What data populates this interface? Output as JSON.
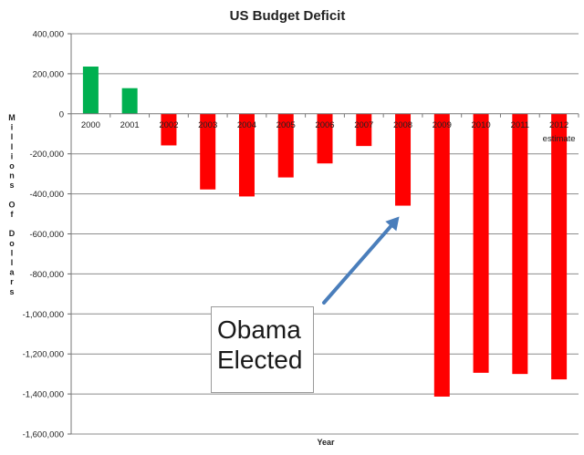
{
  "chart_data": {
    "type": "bar",
    "title": "US Budget Deficit",
    "xlabel": "Year",
    "ylabel": "Millions Of Dollars",
    "ylim": [
      -1600000,
      400000
    ],
    "yticks": [
      400000,
      200000,
      0,
      -200000,
      -400000,
      -600000,
      -800000,
      -1000000,
      -1200000,
      -1400000,
      -1600000
    ],
    "ytick_labels": [
      "400,000",
      "200,000",
      "0",
      "-200,000",
      "-400,000",
      "-600,000",
      "-800,000",
      "-1,000,000",
      "-1,200,000",
      "-1,400,000",
      "-1,600,000"
    ],
    "grid": true,
    "categories": [
      "2000",
      "2001",
      "2002",
      "2003",
      "2004",
      "2005",
      "2006",
      "2007",
      "2008",
      "2009",
      "2010",
      "2011",
      "2012"
    ],
    "values": [
      236000,
      128000,
      -158000,
      -378000,
      -413000,
      -318000,
      -248000,
      -161000,
      -459000,
      -1413000,
      -1294000,
      -1300000,
      -1327000
    ],
    "bar_colors": [
      "#00b050",
      "#00b050",
      "#ff0000",
      "#ff0000",
      "#ff0000",
      "#ff0000",
      "#ff0000",
      "#ff0000",
      "#ff0000",
      "#ff0000",
      "#ff0000",
      "#ff0000",
      "#ff0000"
    ],
    "category_note": "estimate",
    "annotation": {
      "line1": "Obama",
      "line2": "Elected",
      "points_to": "2008"
    },
    "colors": {
      "positive": "#00b050",
      "negative": "#ff0000",
      "arrow": "#4a7ebb",
      "grid": "#8c8c8c"
    }
  }
}
